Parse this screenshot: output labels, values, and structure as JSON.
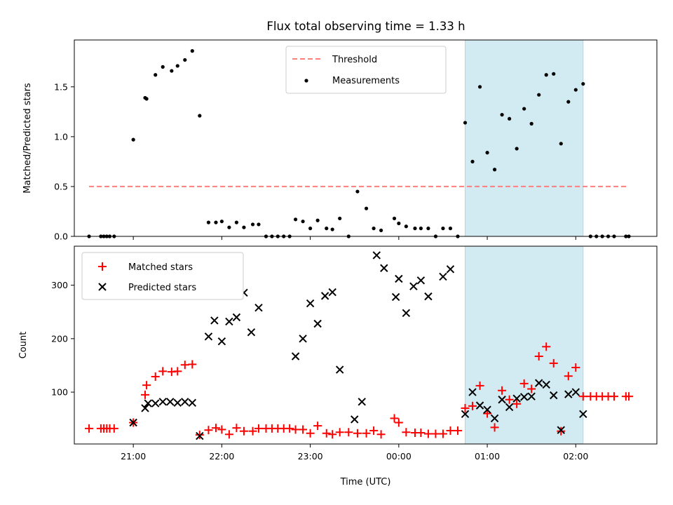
{
  "chart_data": [
    {
      "type": "scatter",
      "title": "Flux total observing time = 1.33 h",
      "ylabel": "Matched/Predicted stars",
      "xlabel": "",
      "xlim": [
        "20:20",
        "02:55"
      ],
      "ylim": [
        0,
        1.97
      ],
      "yticks": [
        "0.0",
        "0.5",
        "1.0",
        "1.5"
      ],
      "legend": {
        "position": "top-center",
        "entries": [
          "Threshold",
          "Measurements"
        ]
      },
      "colors": {
        "threshold": "#ff7f7f",
        "measurements": "#000000",
        "shade": "#add8e6"
      },
      "shaded_region": [
        "00:45",
        "02:05"
      ],
      "threshold": {
        "name": "Threshold",
        "value": 0.5,
        "x_range": [
          "20:30",
          "02:35"
        ]
      },
      "series": [
        {
          "name": "Measurements",
          "points": [
            [
              "20:30",
              0.0
            ],
            [
              "20:38",
              0.0
            ],
            [
              "20:40",
              0.0
            ],
            [
              "20:42",
              0.0
            ],
            [
              "20:44",
              0.0
            ],
            [
              "20:47",
              0.0
            ],
            [
              "21:00",
              0.97
            ],
            [
              "21:08",
              1.39
            ],
            [
              "21:09",
              1.38
            ],
            [
              "21:15",
              1.62
            ],
            [
              "21:20",
              1.7
            ],
            [
              "21:26",
              1.66
            ],
            [
              "21:30",
              1.71
            ],
            [
              "21:35",
              1.77
            ],
            [
              "21:40",
              1.86
            ],
            [
              "21:45",
              1.21
            ],
            [
              "21:51",
              0.14
            ],
            [
              "21:56",
              0.14
            ],
            [
              "22:00",
              0.15
            ],
            [
              "22:05",
              0.09
            ],
            [
              "22:10",
              0.14
            ],
            [
              "22:15",
              0.09
            ],
            [
              "22:21",
              0.12
            ],
            [
              "22:25",
              0.12
            ],
            [
              "22:30",
              0.0
            ],
            [
              "22:34",
              0.0
            ],
            [
              "22:38",
              0.0
            ],
            [
              "22:42",
              0.0
            ],
            [
              "22:46",
              0.0
            ],
            [
              "22:50",
              0.17
            ],
            [
              "22:55",
              0.15
            ],
            [
              "23:00",
              0.08
            ],
            [
              "23:05",
              0.16
            ],
            [
              "23:11",
              0.08
            ],
            [
              "23:15",
              0.07
            ],
            [
              "23:20",
              0.18
            ],
            [
              "23:26",
              0.0
            ],
            [
              "23:32",
              0.45
            ],
            [
              "23:38",
              0.28
            ],
            [
              "23:43",
              0.08
            ],
            [
              "23:48",
              0.06
            ],
            [
              "23:57",
              0.18
            ],
            [
              "00:00",
              0.13
            ],
            [
              "00:05",
              0.1
            ],
            [
              "00:11",
              0.08
            ],
            [
              "00:15",
              0.08
            ],
            [
              "00:20",
              0.08
            ],
            [
              "00:25",
              0.0
            ],
            [
              "00:30",
              0.08
            ],
            [
              "00:35",
              0.08
            ],
            [
              "00:40",
              0.0
            ],
            [
              "00:45",
              1.14
            ],
            [
              "00:50",
              0.75
            ],
            [
              "00:55",
              1.5
            ],
            [
              "01:00",
              0.84
            ],
            [
              "01:05",
              0.67
            ],
            [
              "01:10",
              1.22
            ],
            [
              "01:15",
              1.18
            ],
            [
              "01:20",
              0.88
            ],
            [
              "01:25",
              1.28
            ],
            [
              "01:30",
              1.13
            ],
            [
              "01:35",
              1.42
            ],
            [
              "01:40",
              1.62
            ],
            [
              "01:45",
              1.63
            ],
            [
              "01:50",
              0.93
            ],
            [
              "01:55",
              1.35
            ],
            [
              "02:00",
              1.47
            ],
            [
              "02:05",
              1.53
            ],
            [
              "02:10",
              0.0
            ],
            [
              "02:14",
              0.0
            ],
            [
              "02:18",
              0.0
            ],
            [
              "02:22",
              0.0
            ],
            [
              "02:26",
              0.0
            ],
            [
              "02:34",
              0.0
            ],
            [
              "02:36",
              0.0
            ]
          ]
        }
      ]
    },
    {
      "type": "scatter",
      "title": "",
      "xlabel": "Time (UTC)",
      "ylabel": "Count",
      "xlim": [
        "20:20",
        "02:55"
      ],
      "ylim": [
        3,
        373
      ],
      "xticks": [
        "21:00",
        "22:00",
        "23:00",
        "00:00",
        "01:00",
        "02:00"
      ],
      "yticks": [
        "100",
        "200",
        "300"
      ],
      "legend": {
        "position": "top-left",
        "entries": [
          "Matched stars",
          "Predicted stars"
        ]
      },
      "colors": {
        "matched": "#ff0000",
        "predicted": "#000000",
        "shade": "#add8e6"
      },
      "shaded_region": [
        "00:45",
        "02:05"
      ],
      "series": [
        {
          "name": "Matched stars",
          "marker": "plus",
          "points": [
            [
              "20:30",
              32
            ],
            [
              "20:38",
              32
            ],
            [
              "20:40",
              32
            ],
            [
              "20:42",
              32
            ],
            [
              "20:44",
              32
            ],
            [
              "20:47",
              32
            ],
            [
              "21:00",
              43
            ],
            [
              "21:08",
              95
            ],
            [
              "21:09",
              113
            ],
            [
              "21:15",
              129
            ],
            [
              "21:20",
              139
            ],
            [
              "21:26",
              138
            ],
            [
              "21:30",
              139
            ],
            [
              "21:35",
              151
            ],
            [
              "21:40",
              152
            ],
            [
              "21:45",
              20
            ],
            [
              "21:51",
              29
            ],
            [
              "21:56",
              33
            ],
            [
              "22:00",
              30
            ],
            [
              "22:05",
              21
            ],
            [
              "22:10",
              33
            ],
            [
              "22:15",
              27
            ],
            [
              "22:21",
              27
            ],
            [
              "22:25",
              32
            ],
            [
              "22:30",
              32
            ],
            [
              "22:34",
              32
            ],
            [
              "22:38",
              32
            ],
            [
              "22:42",
              32
            ],
            [
              "22:46",
              32
            ],
            [
              "22:50",
              30
            ],
            [
              "22:55",
              30
            ],
            [
              "23:00",
              23
            ],
            [
              "23:05",
              37
            ],
            [
              "23:11",
              23
            ],
            [
              "23:15",
              21
            ],
            [
              "23:20",
              25
            ],
            [
              "23:26",
              25
            ],
            [
              "23:32",
              23
            ],
            [
              "23:38",
              23
            ],
            [
              "23:43",
              28
            ],
            [
              "23:48",
              21
            ],
            [
              "23:57",
              51
            ],
            [
              "00:00",
              43
            ],
            [
              "00:05",
              25
            ],
            [
              "00:11",
              24
            ],
            [
              "00:15",
              24
            ],
            [
              "00:20",
              22
            ],
            [
              "00:25",
              22
            ],
            [
              "00:30",
              22
            ],
            [
              "00:35",
              28
            ],
            [
              "00:40",
              28
            ],
            [
              "00:45",
              70
            ],
            [
              "00:50",
              74
            ],
            [
              "00:55",
              112
            ],
            [
              "01:00",
              60
            ],
            [
              "01:05",
              34
            ],
            [
              "01:10",
              103
            ],
            [
              "01:15",
              86
            ],
            [
              "01:20",
              78
            ],
            [
              "01:25",
              116
            ],
            [
              "01:30",
              106
            ],
            [
              "01:35",
              167
            ],
            [
              "01:40",
              185
            ],
            [
              "01:45",
              154
            ],
            [
              "01:50",
              27
            ],
            [
              "01:55",
              130
            ],
            [
              "02:00",
              146
            ],
            [
              "02:05",
              92
            ],
            [
              "02:10",
              92
            ],
            [
              "02:14",
              92
            ],
            [
              "02:18",
              92
            ],
            [
              "02:22",
              92
            ],
            [
              "02:26",
              92
            ],
            [
              "02:34",
              92
            ],
            [
              "02:36",
              92
            ]
          ]
        },
        {
          "name": "Predicted stars",
          "marker": "x",
          "points": [
            [
              "21:00",
              43
            ],
            [
              "21:08",
              70
            ],
            [
              "21:10",
              79
            ],
            [
              "21:15",
              79
            ],
            [
              "21:20",
              82
            ],
            [
              "21:25",
              82
            ],
            [
              "21:30",
              80
            ],
            [
              "21:35",
              82
            ],
            [
              "21:40",
              80
            ],
            [
              "21:45",
              18
            ],
            [
              "21:51",
              204
            ],
            [
              "21:55",
              234
            ],
            [
              "22:00",
              195
            ],
            [
              "22:05",
              232
            ],
            [
              "22:10",
              240
            ],
            [
              "22:15",
              286
            ],
            [
              "22:20",
              212
            ],
            [
              "22:25",
              258
            ],
            [
              "22:50",
              167
            ],
            [
              "22:55",
              200
            ],
            [
              "23:00",
              266
            ],
            [
              "23:05",
              228
            ],
            [
              "23:10",
              280
            ],
            [
              "23:15",
              287
            ],
            [
              "23:20",
              142
            ],
            [
              "23:30",
              49
            ],
            [
              "23:35",
              82
            ],
            [
              "23:45",
              356
            ],
            [
              "23:50",
              332
            ],
            [
              "23:58",
              278
            ],
            [
              "00:00",
              312
            ],
            [
              "00:05",
              248
            ],
            [
              "00:10",
              298
            ],
            [
              "00:15",
              309
            ],
            [
              "00:20",
              279
            ],
            [
              "00:30",
              316
            ],
            [
              "00:35",
              330
            ],
            [
              "00:45",
              59
            ],
            [
              "00:50",
              100
            ],
            [
              "00:55",
              75
            ],
            [
              "01:00",
              67
            ],
            [
              "01:05",
              51
            ],
            [
              "01:10",
              86
            ],
            [
              "01:15",
              72
            ],
            [
              "01:20",
              88
            ],
            [
              "01:25",
              91
            ],
            [
              "01:30",
              92
            ],
            [
              "01:35",
              117
            ],
            [
              "01:40",
              114
            ],
            [
              "01:45",
              94
            ],
            [
              "01:50",
              29
            ],
            [
              "01:55",
              96
            ],
            [
              "02:00",
              100
            ],
            [
              "02:05",
              59
            ]
          ]
        }
      ]
    }
  ]
}
